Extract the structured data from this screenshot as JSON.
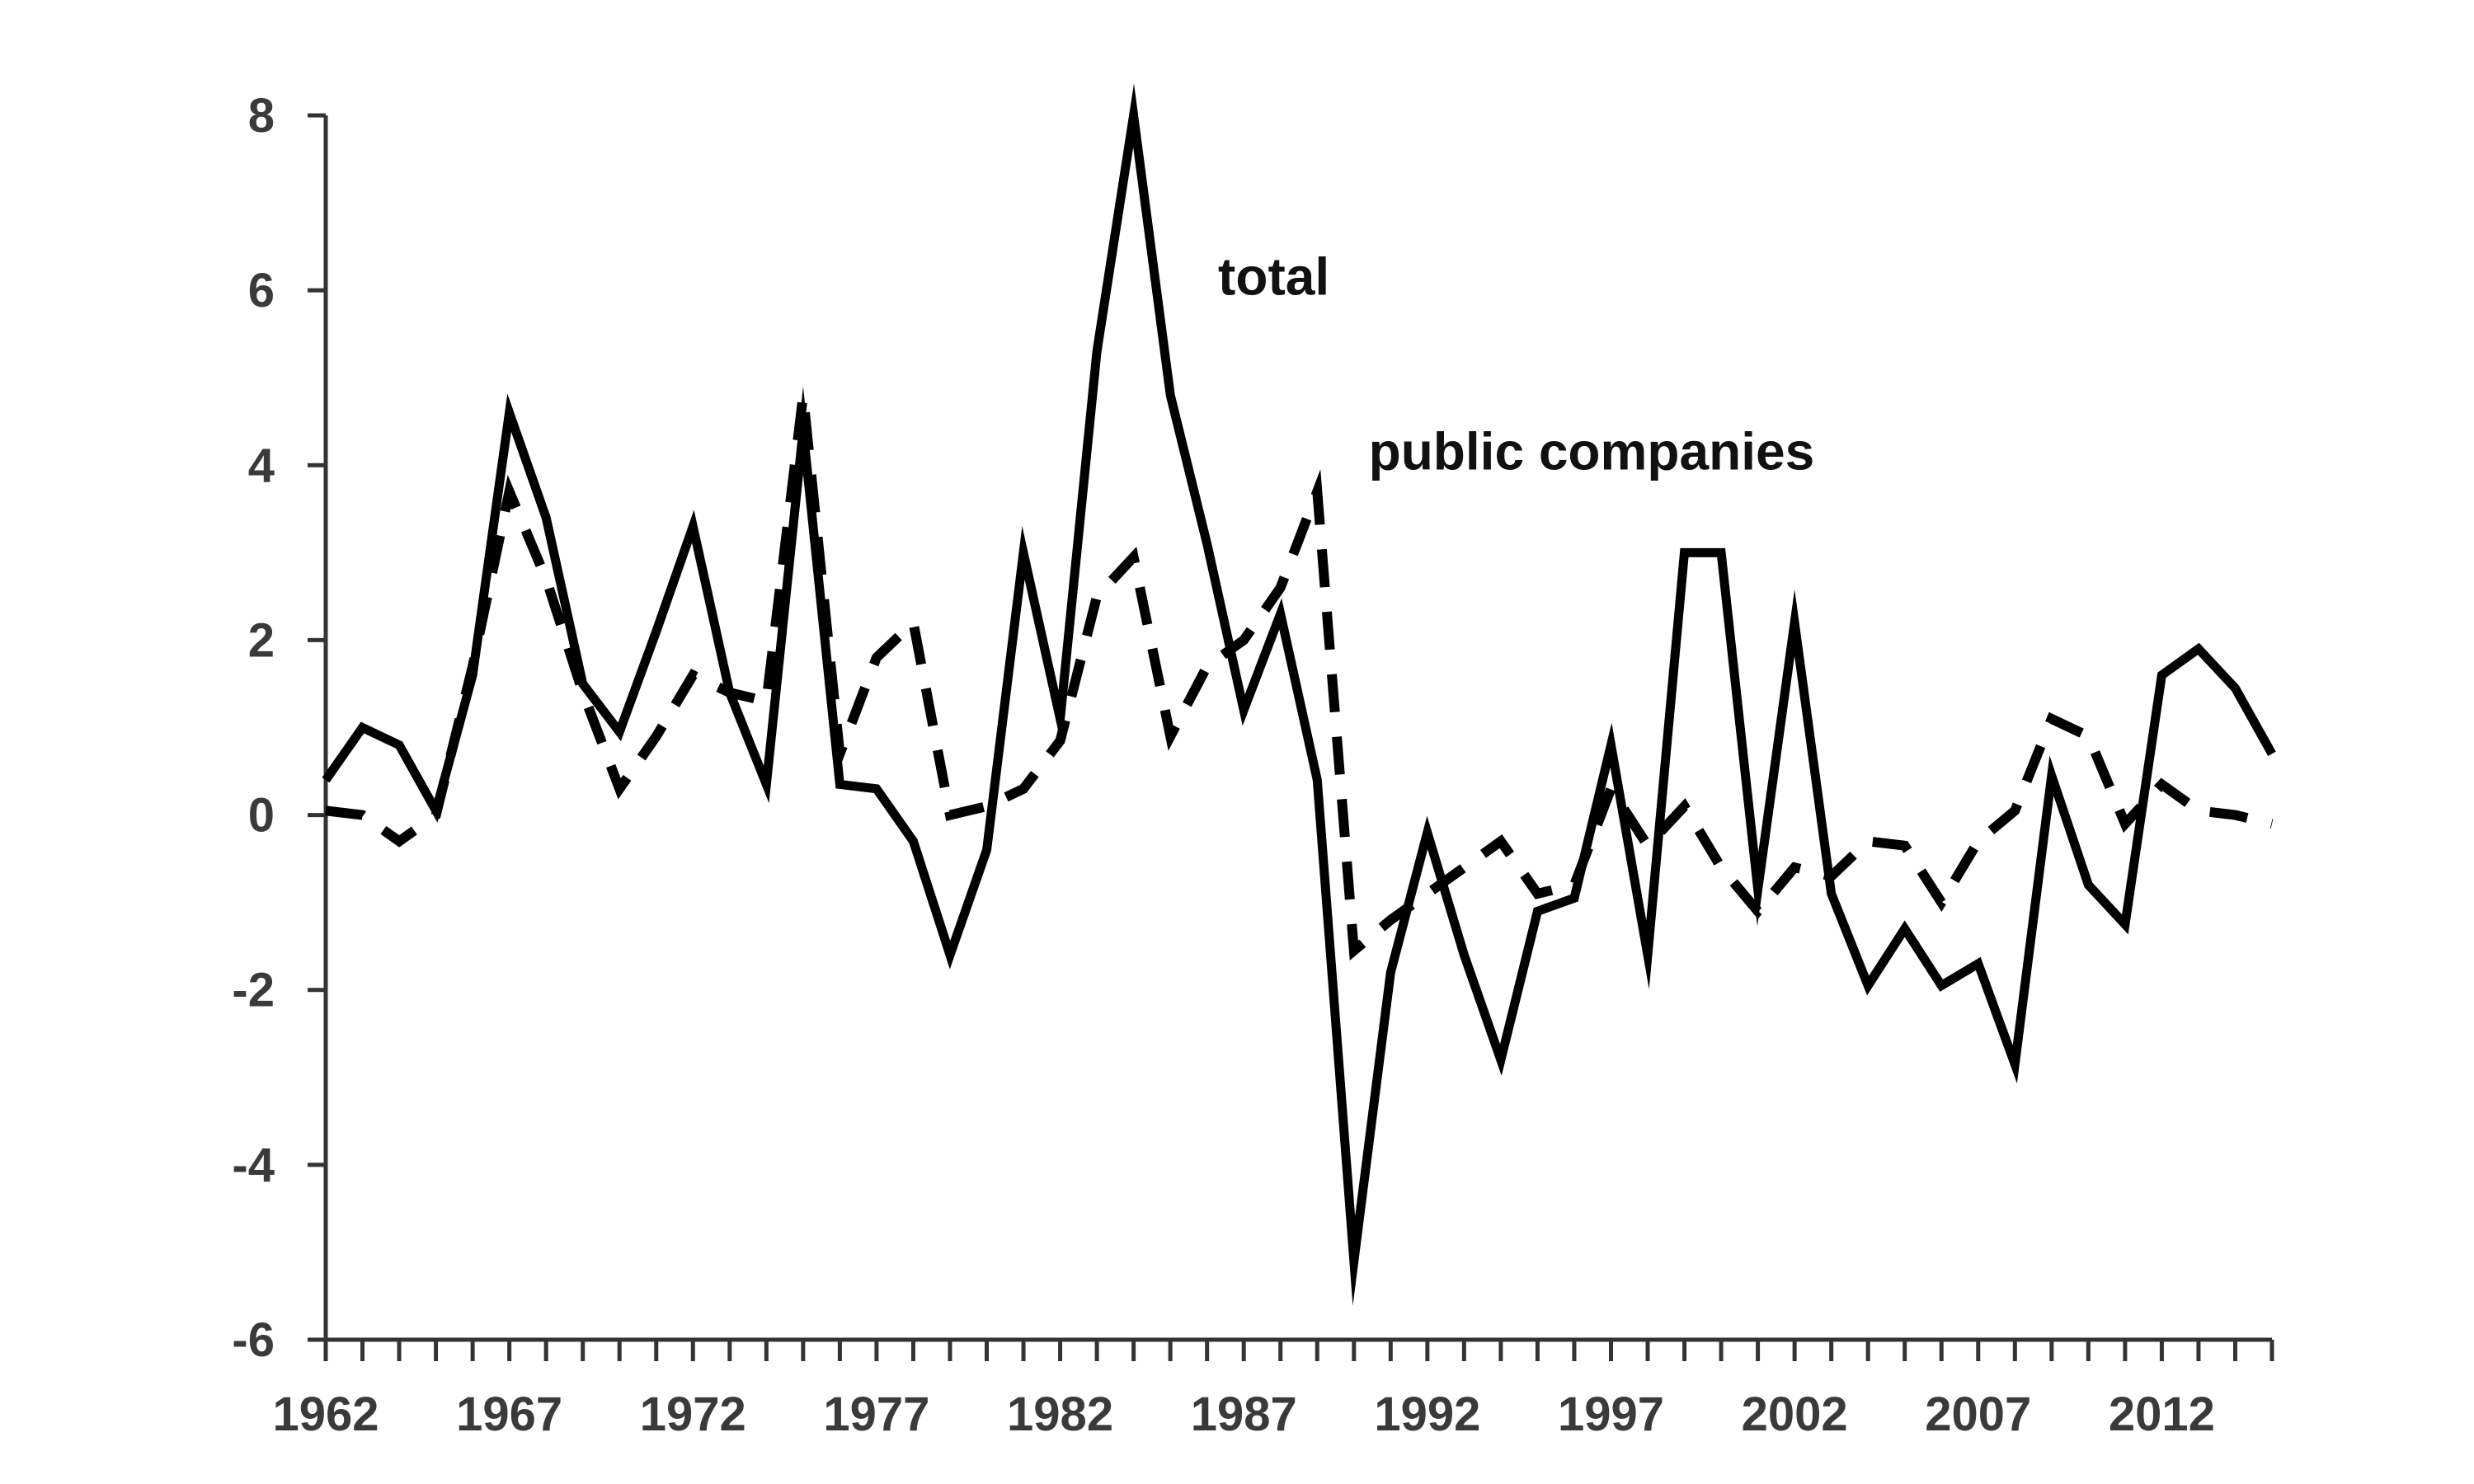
{
  "chart_data": {
    "type": "line",
    "title": "",
    "xlabel": "",
    "ylabel": "",
    "xlim": [
      1962,
      2015
    ],
    "ylim": [
      -6,
      8
    ],
    "yticks": [
      -6,
      -4,
      -2,
      0,
      2,
      4,
      6,
      8
    ],
    "xticks_labeled": [
      1962,
      1967,
      1972,
      1977,
      1982,
      1987,
      1992,
      1997,
      2002,
      2007,
      2012
    ],
    "x": [
      1962,
      1963,
      1964,
      1965,
      1966,
      1967,
      1968,
      1969,
      1970,
      1971,
      1972,
      1973,
      1974,
      1975,
      1976,
      1977,
      1978,
      1979,
      1980,
      1981,
      1982,
      1983,
      1984,
      1985,
      1986,
      1987,
      1988,
      1989,
      1990,
      1991,
      1992,
      1993,
      1994,
      1995,
      1996,
      1997,
      1998,
      1999,
      2000,
      2001,
      2002,
      2003,
      2004,
      2005,
      2006,
      2007,
      2008,
      2009,
      2010,
      2011,
      2012,
      2013,
      2014,
      2015
    ],
    "series": [
      {
        "name": "total",
        "style": "solid",
        "color": "#000000",
        "values": [
          0.4,
          1.0,
          0.8,
          0.05,
          1.6,
          4.6,
          3.4,
          1.5,
          0.95,
          2.1,
          3.3,
          1.4,
          0.35,
          4.4,
          0.35,
          0.3,
          -0.3,
          -1.6,
          -0.4,
          3.0,
          1.1,
          5.3,
          8.0,
          4.8,
          3.1,
          1.2,
          2.3,
          0.4,
          -5.1,
          -1.8,
          -0.2,
          -1.6,
          -2.8,
          -1.1,
          -0.95,
          0.8,
          -1.6,
          3.0,
          3.0,
          -0.85,
          2.2,
          -0.9,
          -1.95,
          -1.3,
          -1.95,
          -1.7,
          -2.85,
          0.45,
          -0.8,
          -1.25,
          1.6,
          1.9,
          1.45,
          0.7
        ]
      },
      {
        "name": "public companies",
        "style": "dashed",
        "color": "#000000",
        "values": [
          0.05,
          0.0,
          -0.3,
          0.0,
          1.7,
          3.7,
          2.7,
          1.4,
          0.3,
          0.9,
          1.6,
          1.4,
          1.3,
          4.8,
          0.7,
          1.8,
          2.2,
          0.0,
          0.1,
          0.3,
          0.85,
          2.5,
          2.95,
          0.9,
          1.7,
          2.0,
          2.6,
          3.7,
          -1.55,
          -1.2,
          -0.9,
          -0.6,
          -0.3,
          -0.9,
          -0.8,
          0.3,
          -0.35,
          0.1,
          -0.6,
          -1.1,
          -0.6,
          -0.7,
          -0.3,
          -0.35,
          -1.0,
          -0.3,
          0.05,
          1.1,
          0.9,
          -0.1,
          0.35,
          0.05,
          0.0,
          -0.1
        ]
      }
    ],
    "annotations": [
      {
        "text": "total",
        "series": "total",
        "x": 1986.3,
        "y": 5.95
      },
      {
        "text": "public companies",
        "series": "public companies",
        "x": 1990.4,
        "y": 3.95
      }
    ],
    "grid": false,
    "legend": "none"
  }
}
